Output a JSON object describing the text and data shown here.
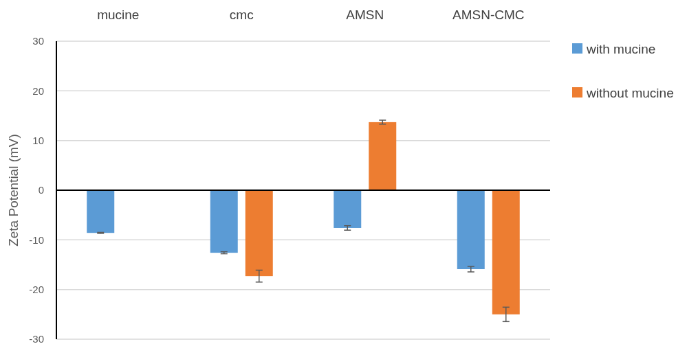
{
  "chart_data": {
    "type": "bar",
    "ylabel": "Zeta Potential (mV)",
    "categories": [
      "mucine",
      "cmc",
      "AMSN",
      "AMSN-CMC"
    ],
    "series": [
      {
        "name": "with mucine",
        "color": "#5b9bd5",
        "values": [
          -8.6,
          -12.6,
          -7.6,
          -15.9
        ],
        "errors": [
          0.1,
          0.2,
          0.45,
          0.55
        ]
      },
      {
        "name": "without mucine",
        "color": "#ed7d31",
        "values": [
          null,
          -17.3,
          13.7,
          -25.0
        ],
        "errors": [
          null,
          1.2,
          0.4,
          1.45
        ]
      }
    ],
    "ylim": [
      -30,
      30
    ],
    "yticks": [
      -30,
      -20,
      -10,
      0,
      10,
      20,
      30
    ],
    "grid": "y",
    "legend": "right"
  }
}
